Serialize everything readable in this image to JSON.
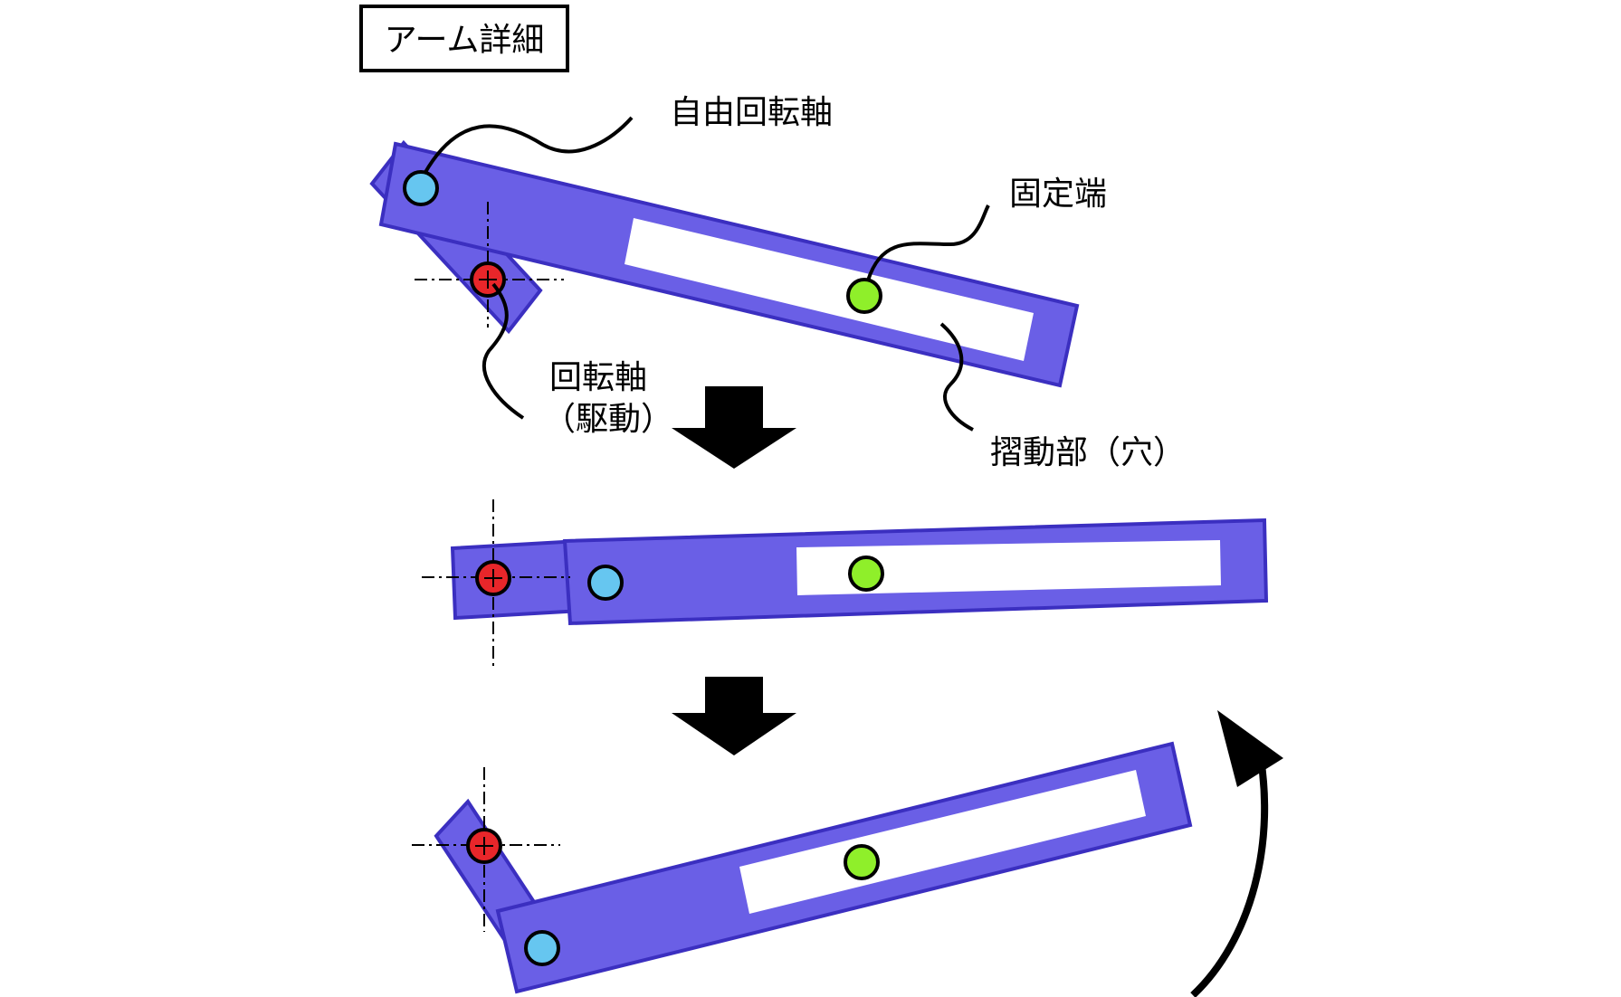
{
  "title": "アーム詳細",
  "labels": {
    "free_pivot": "自由回転軸",
    "fixed_end": "固定端",
    "drive_pivot_line1": "回転軸",
    "drive_pivot_line2": "（駆動）",
    "slide_slot": "摺動部（穴）"
  },
  "colors": {
    "arm_fill": "#6a5fe6",
    "arm_stroke": "#3b2fc0",
    "slot_fill": "#ffffff",
    "drive_pivot": "#e8262a",
    "free_pivot": "#66c6f0",
    "fixed_pin": "#8fef2a",
    "arrow": "#000000",
    "text": "#000000"
  },
  "icons": {
    "step_arrow": "down-arrow-icon",
    "rotation_arrow": "curved-arrow-icon",
    "axis_marker": "crosshair-icon"
  }
}
